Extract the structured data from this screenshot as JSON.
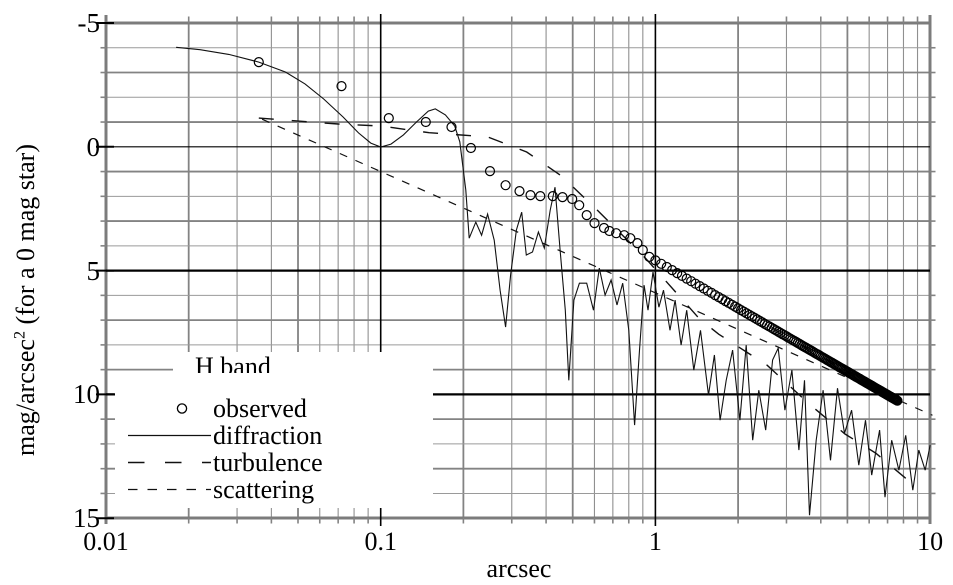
{
  "figure": {
    "x_axis_title": "arcsec",
    "y_axis_title_base": "mag/arcsec",
    "y_axis_title_sup": "2",
    "y_axis_title_rest": " (for a 0 mag star)"
  },
  "legend": {
    "header": "H band",
    "items": [
      {
        "key": "observed",
        "label": "observed",
        "marker": "open-circle"
      },
      {
        "key": "diffraction",
        "label": "diffraction",
        "marker": "solid-line"
      },
      {
        "key": "turbulence",
        "label": "turbulence",
        "marker": "long-dash-line"
      },
      {
        "key": "scattering",
        "label": "scattering",
        "marker": "short-dash-line"
      }
    ]
  },
  "chart_data": {
    "type": "line",
    "title": "",
    "xlabel": "arcsec",
    "ylabel": "mag/arcsec^2 (for a 0 mag star)",
    "x_scale": "log",
    "x_range": [
      0.01,
      10
    ],
    "y_range_top_to_bottom": [
      -5,
      15
    ],
    "y_axis_inverted": true,
    "grid": "minor-and-major",
    "legend_position": "left-center",
    "colors": {
      "curves": "#111111",
      "minor_grid": "#8a8a8a",
      "minor_grid_light": "#9a9a9a",
      "major_grid": "#000000",
      "frame": "#7c7c7c",
      "background": "#ffffff"
    },
    "x_ticks": [
      {
        "label": "0.01",
        "value": 0.01
      },
      {
        "label": "0.1",
        "value": 0.1
      },
      {
        "label": "1",
        "value": 1
      },
      {
        "label": "10",
        "value": 10
      }
    ],
    "y_ticks": [
      {
        "label": "-5",
        "value": -5
      },
      {
        "label": "0",
        "value": 0
      },
      {
        "label": "5",
        "value": 5
      },
      {
        "label": "10",
        "value": 10
      },
      {
        "label": "15",
        "value": 15
      }
    ],
    "series": {
      "observed": {
        "style": "open-circle-markers",
        "points": [
          [
            0.036,
            -3.42
          ],
          [
            0.072,
            -2.45
          ],
          [
            0.107,
            -1.16
          ],
          [
            0.146,
            -1.0
          ],
          [
            0.181,
            -0.8
          ],
          [
            0.213,
            0.05
          ],
          [
            0.25,
            0.98
          ],
          [
            0.285,
            1.55
          ],
          [
            0.32,
            1.79
          ],
          [
            0.351,
            1.95
          ],
          [
            0.381,
            1.99
          ],
          [
            0.423,
            1.99
          ],
          [
            0.459,
            2.03
          ],
          [
            0.498,
            2.11
          ],
          [
            0.528,
            2.36
          ],
          [
            0.562,
            2.76
          ],
          [
            0.6,
            3.08
          ],
          [
            0.65,
            3.28
          ],
          [
            0.68,
            3.4
          ],
          [
            0.72,
            3.49
          ],
          [
            0.77,
            3.57
          ],
          [
            0.81,
            3.69
          ],
          [
            0.86,
            3.89
          ],
          [
            0.9,
            4.17
          ]
        ],
        "dense_tail": {
          "comment": "circles sampled linearly in theta so they merge into a thick band at right end",
          "theta_start": 0.95,
          "theta_end": 7.6,
          "theta_step": 0.05,
          "mag_at_1_arcsec": 4.59,
          "mag_slope_per_decade": 6.43
        }
      },
      "diffraction": {
        "style": "solid",
        "points": [
          [
            0.018,
            -4.02
          ],
          [
            0.022,
            -3.92
          ],
          [
            0.028,
            -3.73
          ],
          [
            0.036,
            -3.42
          ],
          [
            0.045,
            -3.02
          ],
          [
            0.053,
            -2.54
          ],
          [
            0.062,
            -1.93
          ],
          [
            0.073,
            -1.2
          ],
          [
            0.083,
            -0.56
          ],
          [
            0.092,
            -0.15
          ],
          [
            0.1,
            0.01
          ],
          [
            0.109,
            -0.11
          ],
          [
            0.121,
            -0.48
          ],
          [
            0.135,
            -1.0
          ],
          [
            0.149,
            -1.44
          ],
          [
            0.158,
            -1.53
          ],
          [
            0.172,
            -1.29
          ],
          [
            0.186,
            -0.84
          ],
          [
            0.194,
            -0.2
          ],
          [
            0.204,
            1.75
          ],
          [
            0.21,
            3.69
          ],
          [
            0.222,
            3.04
          ],
          [
            0.233,
            3.57
          ],
          [
            0.245,
            2.72
          ],
          [
            0.259,
            3.77
          ],
          [
            0.272,
            5.79
          ],
          [
            0.285,
            7.28
          ],
          [
            0.297,
            5.18
          ],
          [
            0.312,
            3.36
          ],
          [
            0.326,
            2.64
          ],
          [
            0.339,
            4.37
          ],
          [
            0.357,
            4.25
          ],
          [
            0.375,
            3.44
          ],
          [
            0.394,
            4.09
          ],
          [
            0.414,
            2.56
          ],
          [
            0.431,
            1.63
          ],
          [
            0.45,
            4.17
          ],
          [
            0.47,
            6.6
          ],
          [
            0.484,
            9.43
          ],
          [
            0.505,
            6.19
          ],
          [
            0.529,
            5.51
          ],
          [
            0.562,
            5.51
          ],
          [
            0.595,
            6.6
          ],
          [
            0.625,
            4.9
          ],
          [
            0.656,
            5.99
          ],
          [
            0.69,
            5.38
          ],
          [
            0.725,
            6.39
          ],
          [
            0.76,
            5.51
          ],
          [
            0.8,
            7.41
          ],
          [
            0.84,
            11.24
          ],
          [
            0.875,
            8.21
          ],
          [
            0.91,
            5.59
          ],
          [
            0.94,
            6.6
          ],
          [
            0.98,
            5.06
          ],
          [
            1.03,
            6.48
          ],
          [
            1.07,
            5.79
          ],
          [
            1.13,
            7.41
          ],
          [
            1.18,
            6.19
          ],
          [
            1.24,
            8.01
          ],
          [
            1.3,
            6.6
          ],
          [
            1.38,
            9.02
          ],
          [
            1.46,
            7.41
          ],
          [
            1.56,
            10.03
          ],
          [
            1.64,
            8.41
          ],
          [
            1.72,
            11.04
          ],
          [
            1.81,
            9.43
          ],
          [
            1.91,
            8.21
          ],
          [
            2.03,
            11.04
          ],
          [
            2.14,
            8.01
          ],
          [
            2.26,
            11.85
          ],
          [
            2.38,
            9.83
          ],
          [
            2.52,
            11.44
          ],
          [
            2.67,
            8.61
          ],
          [
            2.8,
            8.13
          ],
          [
            2.96,
            10.64
          ],
          [
            3.14,
            9.02
          ],
          [
            3.33,
            12.25
          ],
          [
            3.49,
            9.43
          ],
          [
            3.64,
            14.88
          ],
          [
            3.85,
            11.85
          ],
          [
            4.08,
            9.83
          ],
          [
            4.34,
            12.66
          ],
          [
            4.6,
            9.75
          ],
          [
            4.88,
            11.57
          ],
          [
            5.18,
            10.64
          ],
          [
            5.5,
            12.86
          ],
          [
            5.82,
            11.04
          ],
          [
            6.13,
            13.26
          ],
          [
            6.55,
            11.44
          ],
          [
            6.85,
            14.15
          ],
          [
            7.25,
            11.85
          ],
          [
            7.7,
            13.06
          ],
          [
            8.15,
            11.65
          ],
          [
            8.65,
            13.87
          ],
          [
            9.1,
            12.25
          ],
          [
            9.6,
            13.06
          ],
          [
            10.0,
            12.05
          ]
        ]
      },
      "turbulence": {
        "style": "long-dash",
        "points": [
          [
            0.036,
            -1.16
          ],
          [
            0.07,
            -0.92
          ],
          [
            0.1,
            -0.84
          ],
          [
            0.15,
            -0.57
          ],
          [
            0.245,
            -0.4
          ],
          [
            0.34,
            0.21
          ],
          [
            0.455,
            1.18
          ],
          [
            0.62,
            2.6
          ],
          [
            0.92,
            4.5
          ],
          [
            1.45,
            6.96
          ],
          [
            1.7,
            7.57
          ],
          [
            2.55,
            8.82
          ],
          [
            3.6,
            10.35
          ],
          [
            4.9,
            11.6
          ],
          [
            6.34,
            12.37
          ],
          [
            8.54,
            13.58
          ],
          [
            9.1,
            13.8
          ]
        ]
      },
      "scattering": {
        "style": "short-dash",
        "straight_line": {
          "x_start": 0.037,
          "x_end": 10.2,
          "mag_at_1_arcsec": 5.9,
          "mag_slope_per_decade": 4.9
        }
      }
    }
  }
}
